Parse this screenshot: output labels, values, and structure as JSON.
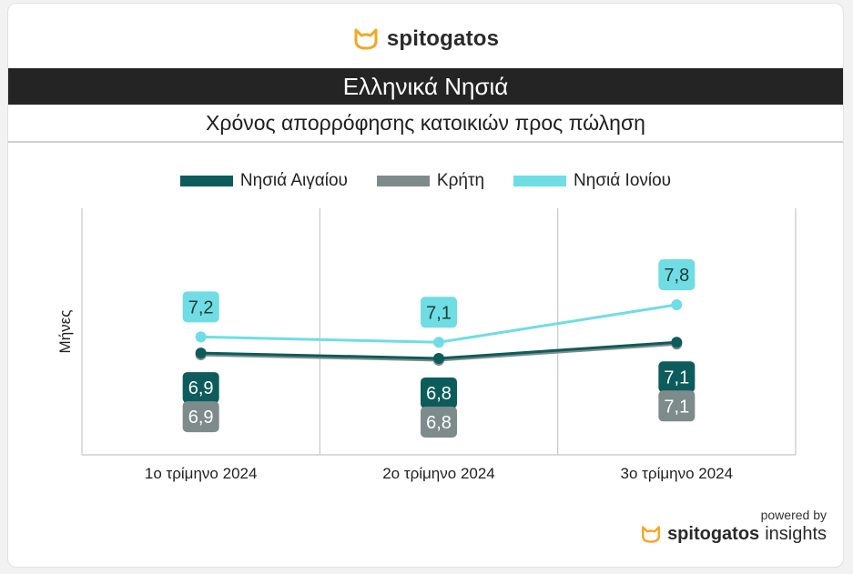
{
  "brand": {
    "name": "spitogatos",
    "icon": "cat-icon",
    "accent": "#f5a623"
  },
  "title": "Ελληνικά Νησιά",
  "subtitle": "Χρόνος απορρόφησης κατοικιών προς πώληση",
  "footer": {
    "powered_by": "powered by",
    "brand_name": "spitogatos",
    "brand_suffix": "insights"
  },
  "chart_data": {
    "type": "line",
    "title": "Χρόνος απορρόφησης κατοικιών προς πώληση",
    "ylabel": "Μήνες",
    "xlabel": "",
    "categories": [
      "1ο τρίμηνο 2024",
      "2ο τρίμηνο 2024",
      "3ο τρίμηνο 2024"
    ],
    "ylim": [
      5.0,
      9.6
    ],
    "grid": "vertical",
    "legend_position": "top",
    "series": [
      {
        "name": "Νησιά Αιγαίου",
        "color": "#0d5c5c",
        "values": [
          6.9,
          6.8,
          7.1
        ],
        "labels": [
          "6,9",
          "6,8",
          "7,1"
        ]
      },
      {
        "name": "Κρήτη",
        "color": "#7d8b8b",
        "values": [
          6.9,
          6.8,
          7.1
        ],
        "labels": [
          "6,9",
          "6,8",
          "7,1"
        ]
      },
      {
        "name": "Νησιά Ιονίου",
        "color": "#6fdde3",
        "values": [
          7.2,
          7.1,
          7.8
        ],
        "labels": [
          "7,2",
          "7,1",
          "7,8"
        ]
      }
    ]
  }
}
